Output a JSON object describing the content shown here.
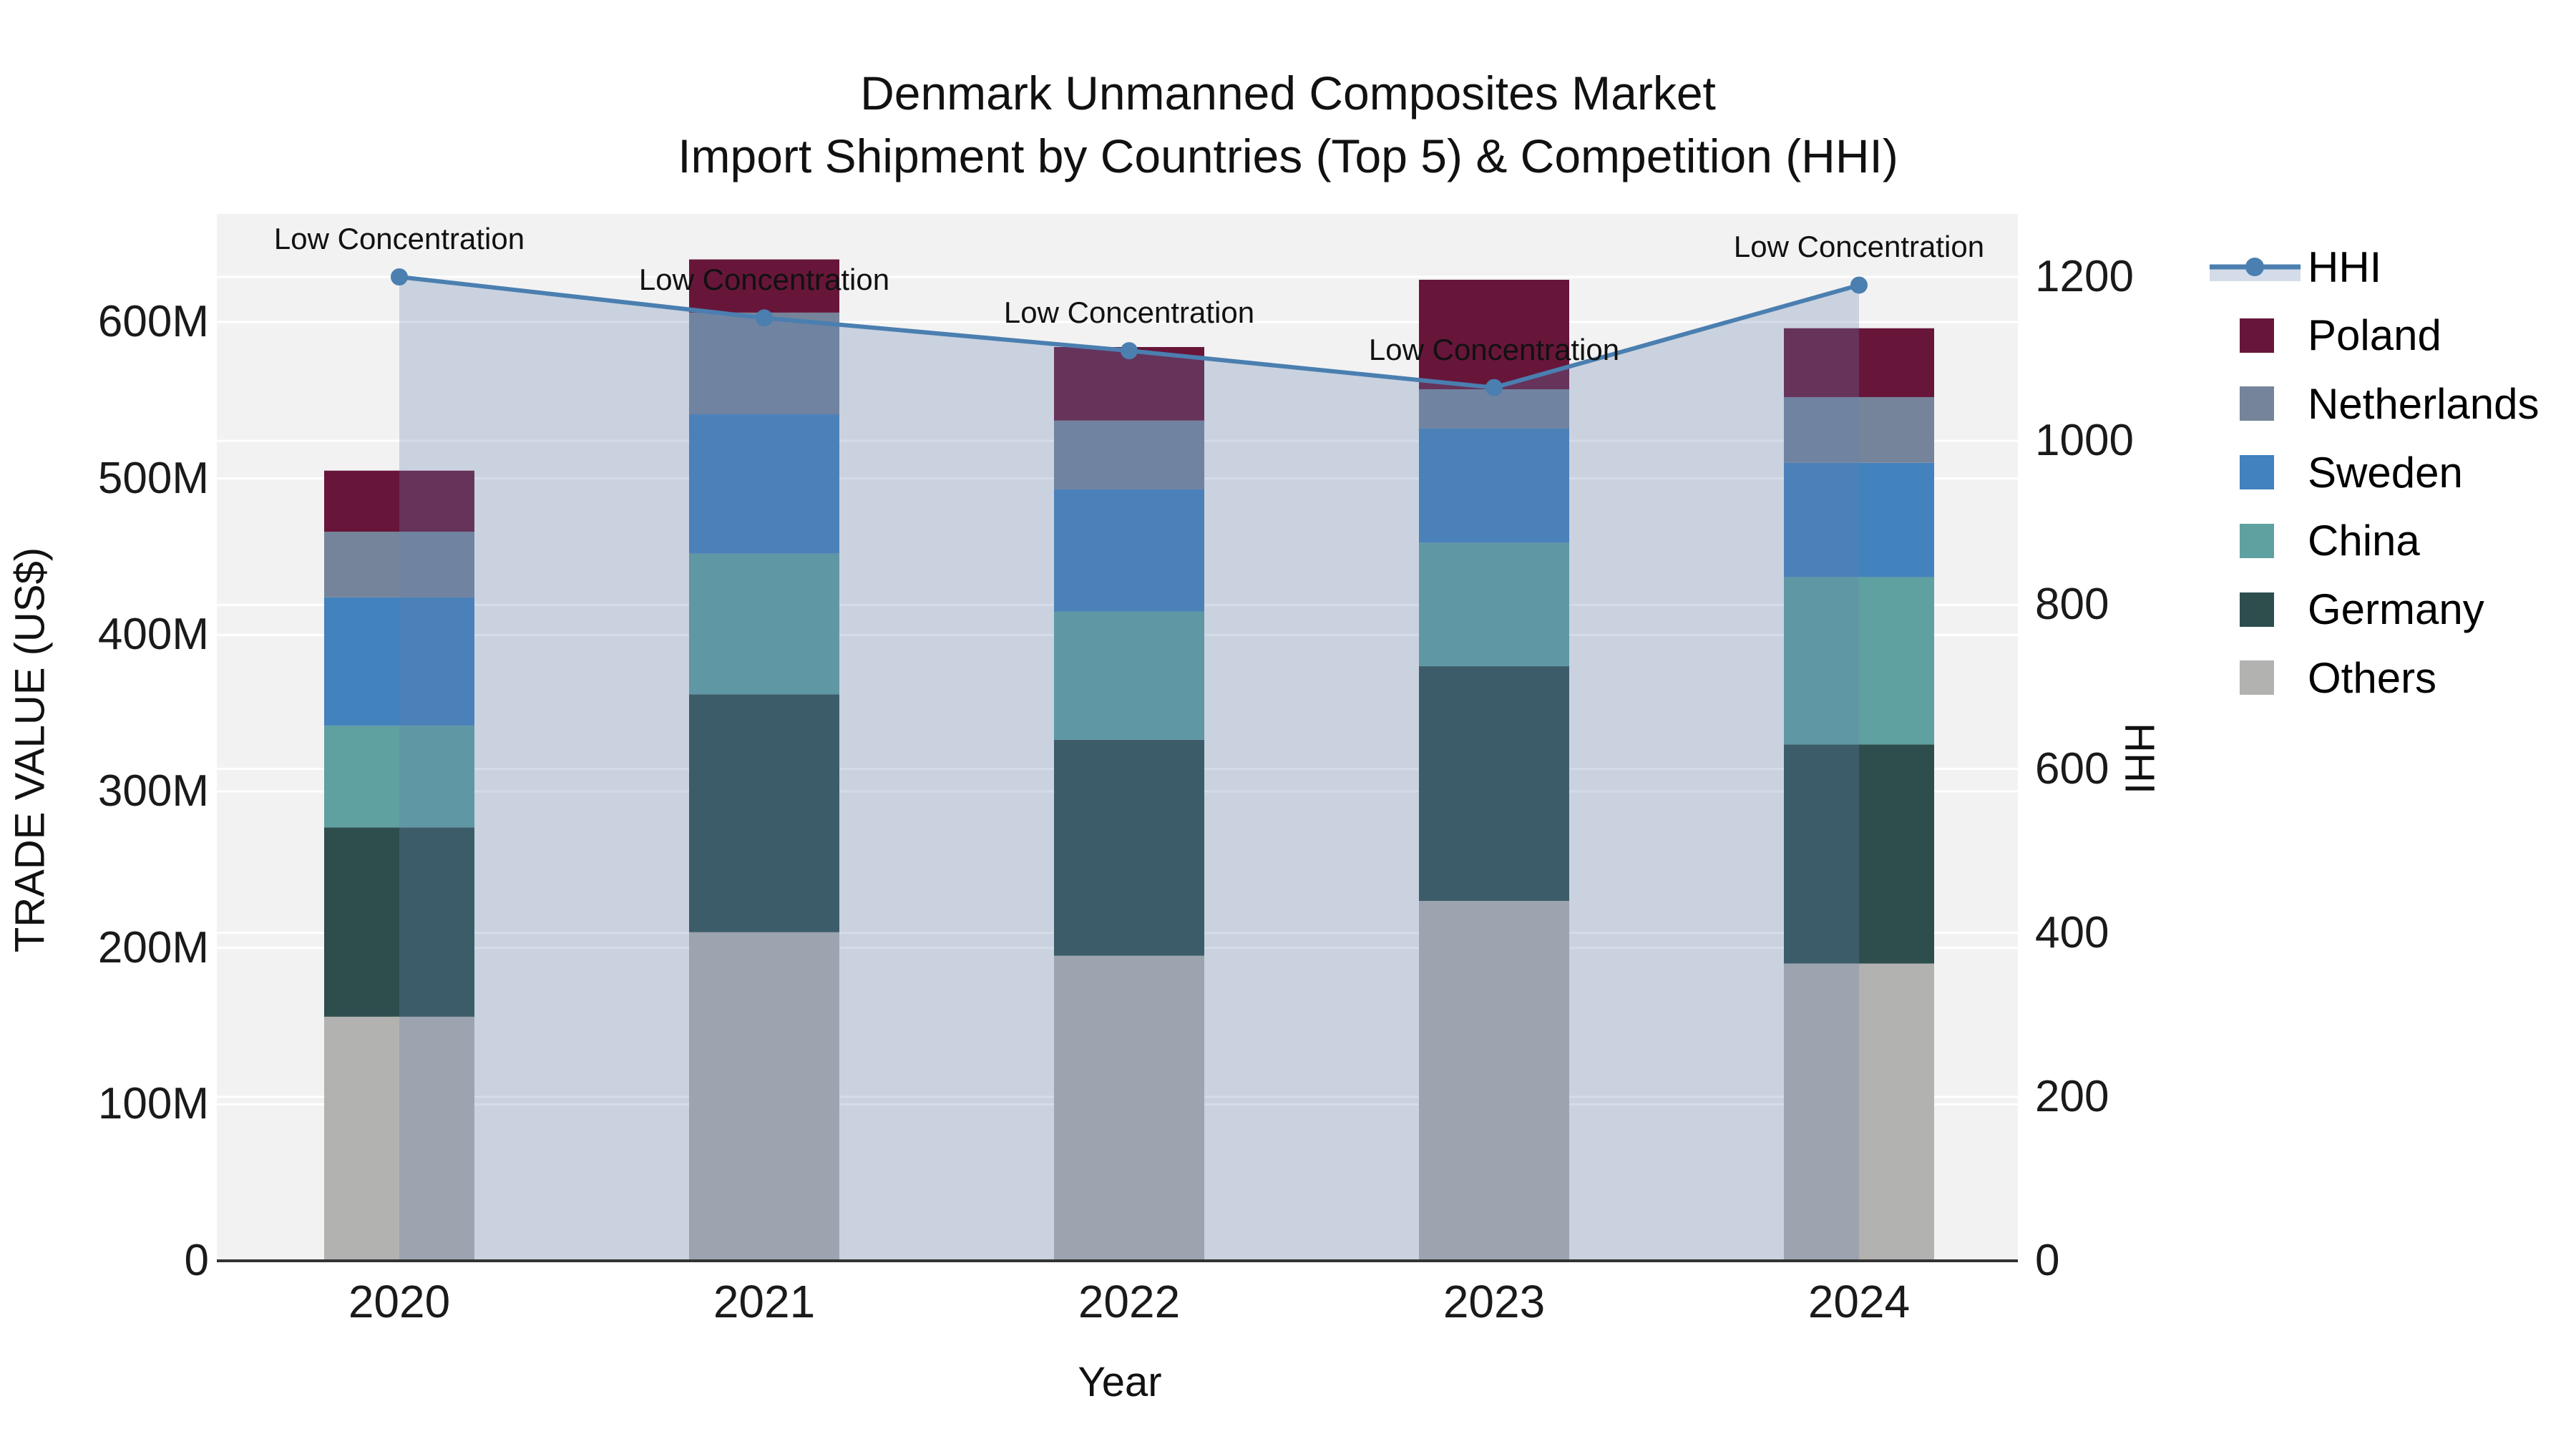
{
  "title": {
    "line1": "Denmark Unmanned Composites Market",
    "line2": "Import Shipment by Countries (Top 5) & Competition (HHI)"
  },
  "axes": {
    "y_left_label": "TRADE VALUE (US$)",
    "y_right_label": "HHI",
    "x_label": "Year",
    "y_left_ticks": [
      {
        "value": 0,
        "label": "0"
      },
      {
        "value": 100,
        "label": "100M"
      },
      {
        "value": 200,
        "label": "200M"
      },
      {
        "value": 300,
        "label": "300M"
      },
      {
        "value": 400,
        "label": "400M"
      },
      {
        "value": 500,
        "label": "500M"
      },
      {
        "value": 600,
        "label": "600M"
      }
    ],
    "y_right_ticks": [
      {
        "value": 0,
        "label": "0"
      },
      {
        "value": 200,
        "label": "200"
      },
      {
        "value": 400,
        "label": "400"
      },
      {
        "value": 600,
        "label": "600"
      },
      {
        "value": 800,
        "label": "800"
      },
      {
        "value": 1000,
        "label": "1000"
      },
      {
        "value": 1200,
        "label": "1200"
      }
    ]
  },
  "chart_data": {
    "type": "combo-stacked-bar-line",
    "categories": [
      "2020",
      "2021",
      "2022",
      "2023",
      "2024"
    ],
    "xlabel": "Year",
    "ylabel_left": "TRADE VALUE (US$)",
    "ylabel_right": "HHI",
    "ylim_left_millions": [
      0,
      667
    ],
    "ylim_right": [
      0,
      1255
    ],
    "grid": true,
    "series": [
      {
        "name": "Others",
        "color": "#b2b2b0",
        "values_millions": [
          156,
          210,
          195,
          230,
          190
        ]
      },
      {
        "name": "Germany",
        "color": "#2e4e4e",
        "values_millions": [
          121,
          152,
          138,
          150,
          140
        ]
      },
      {
        "name": "China",
        "color": "#5fa0a0",
        "values_millions": [
          65,
          90,
          82,
          79,
          107
        ]
      },
      {
        "name": "Sweden",
        "color": "#4282bd",
        "values_millions": [
          82,
          89,
          78,
          73,
          73
        ]
      },
      {
        "name": "Netherlands",
        "color": "#75849a",
        "values_millions": [
          42,
          65,
          44,
          25,
          42
        ]
      },
      {
        "name": "Poland",
        "color": "#67163a",
        "values_millions": [
          39,
          34,
          47,
          70,
          44
        ]
      }
    ],
    "bar_totals_millions": [
      505,
      640,
      584,
      627,
      596
    ],
    "line_series": {
      "name": "HHI",
      "color": "#4a7fb0",
      "fill_color": "rgba(100,130,175,0.28)",
      "values": [
        1200,
        1150,
        1110,
        1065,
        1190
      ],
      "annotations": [
        "Low Concentration",
        "Low Concentration",
        "Low Concentration",
        "Low Concentration",
        "Low Concentration"
      ]
    },
    "legend_position": "right",
    "legend": [
      {
        "label": "HHI",
        "type": "line",
        "color": "#4a7fb0"
      },
      {
        "label": "Poland",
        "type": "swatch",
        "color": "#67163a"
      },
      {
        "label": "Netherlands",
        "type": "swatch",
        "color": "#75849a"
      },
      {
        "label": "Sweden",
        "type": "swatch",
        "color": "#4282bd"
      },
      {
        "label": "China",
        "type": "swatch",
        "color": "#5fa0a0"
      },
      {
        "label": "Germany",
        "type": "swatch",
        "color": "#2e4e4e"
      },
      {
        "label": "Others",
        "type": "swatch",
        "color": "#b2b2b0"
      }
    ]
  },
  "style": {
    "plot_bg": "#f2f2f2",
    "grid_color": "#ffffff",
    "spine_color": "#333333",
    "text_color": "#111111"
  }
}
